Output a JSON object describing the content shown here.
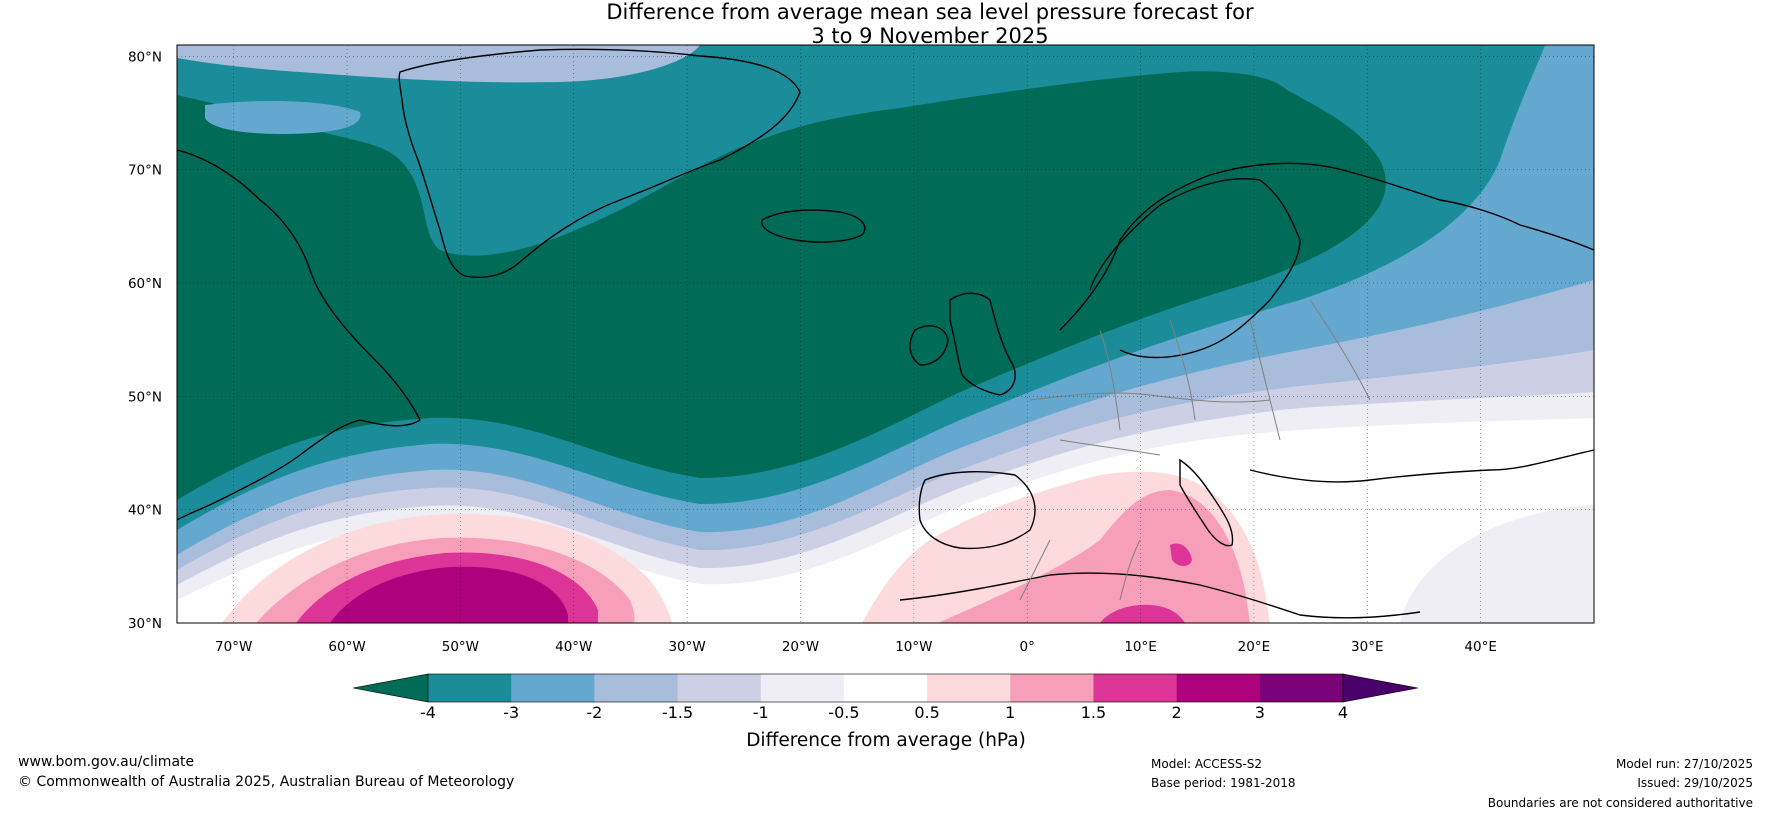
{
  "title": {
    "line1": "Difference from average mean sea level pressure forecast for",
    "line2": "3 to 9 November 2025"
  },
  "axes": {
    "lat_labels": [
      "30°N",
      "40°N",
      "50°N",
      "60°N",
      "70°N",
      "80°N"
    ],
    "lat_values": [
      30,
      40,
      50,
      60,
      70,
      80
    ],
    "lon_labels": [
      "70°W",
      "60°W",
      "50°W",
      "40°W",
      "30°W",
      "20°W",
      "10°W",
      "0°",
      "10°E",
      "20°E",
      "30°E",
      "40°E"
    ],
    "lon_values": [
      -70,
      -60,
      -50,
      -40,
      -30,
      -20,
      -10,
      0,
      10,
      20,
      30,
      40
    ],
    "lon_range": [
      -75,
      50
    ],
    "lat_range": [
      30,
      81
    ]
  },
  "colorbar": {
    "label": "Difference from average (hPa)",
    "tick_labels": [
      "-4",
      "-3",
      "-2",
      "-1.5",
      "-1",
      "-0.5",
      "0.5",
      "1",
      "1.5",
      "2",
      "3",
      "4"
    ],
    "colors": [
      "#006b57",
      "#1b8c99",
      "#64a8cf",
      "#a8bcdb",
      "#cdd0e5",
      "#f0eef5",
      "#ffffff",
      "#fddbdd",
      "#f79fba",
      "#dd3497",
      "#ae017e",
      "#7a0177",
      "#49006a"
    ]
  },
  "footer": {
    "website": "www.bom.gov.au/climate",
    "copyright": "© Commonwealth of Australia 2025, Australian Bureau of Meteorology",
    "model": "Model: ACCESS-S2",
    "base_period": "Base period: 1981-2018",
    "model_run": "Model run: 27/10/2025",
    "issued": "Issued: 29/10/2025",
    "disclaimer": "Boundaries are not considered authoritative"
  }
}
